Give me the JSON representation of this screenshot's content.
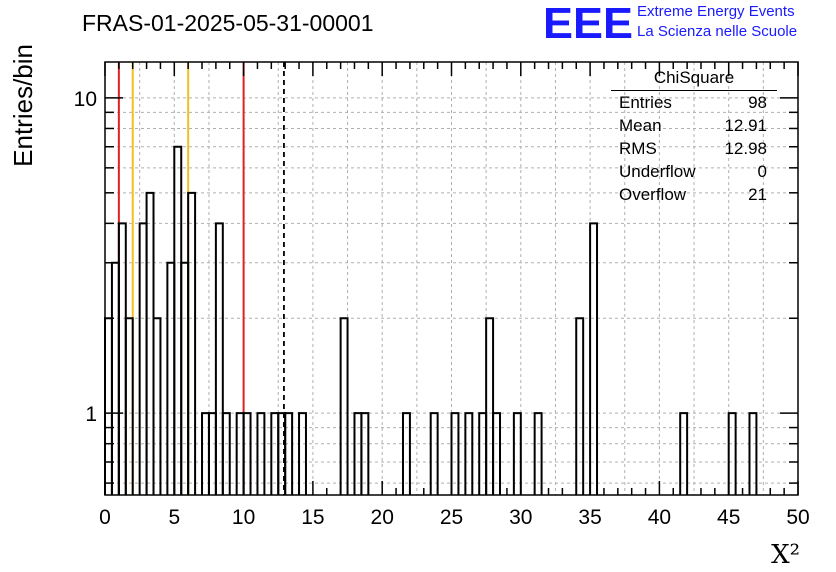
{
  "title": "FRAS-01-2025-05-31-00001",
  "logo": {
    "mark": "EEE",
    "line1": "Extreme Energy Events",
    "line2": "La Scienza nelle Scuole",
    "color": "#1a1aff"
  },
  "stats": {
    "name": "ChiSquare",
    "rows": [
      {
        "label": "Entries",
        "value": "98"
      },
      {
        "label": "Mean",
        "value": "12.91"
      },
      {
        "label": "RMS",
        "value": "12.98"
      },
      {
        "label": "Underflow",
        "value": "0"
      },
      {
        "label": "Overflow",
        "value": "21"
      }
    ]
  },
  "chart_data": {
    "type": "histogram",
    "xlabel": "X²",
    "ylabel": "Entries/bin",
    "xlim": [
      0,
      50
    ],
    "ylim": [
      0.55,
      13
    ],
    "ylog": true,
    "grid": true,
    "bin_width": 0.5,
    "bins": [
      {
        "x0": 0.0,
        "v": 2
      },
      {
        "x0": 0.5,
        "v": 3
      },
      {
        "x0": 1.0,
        "v": 4
      },
      {
        "x0": 1.5,
        "v": 2
      },
      {
        "x0": 2.0,
        "v": 0
      },
      {
        "x0": 2.5,
        "v": 4
      },
      {
        "x0": 3.0,
        "v": 5
      },
      {
        "x0": 3.5,
        "v": 2
      },
      {
        "x0": 4.0,
        "v": 0
      },
      {
        "x0": 4.5,
        "v": 3
      },
      {
        "x0": 5.0,
        "v": 7
      },
      {
        "x0": 5.5,
        "v": 3
      },
      {
        "x0": 6.0,
        "v": 5
      },
      {
        "x0": 6.5,
        "v": 0
      },
      {
        "x0": 7.0,
        "v": 1
      },
      {
        "x0": 7.5,
        "v": 1
      },
      {
        "x0": 8.0,
        "v": 4
      },
      {
        "x0": 8.5,
        "v": 1
      },
      {
        "x0": 9.0,
        "v": 0
      },
      {
        "x0": 9.5,
        "v": 1
      },
      {
        "x0": 10.0,
        "v": 1
      },
      {
        "x0": 10.5,
        "v": 0
      },
      {
        "x0": 11.0,
        "v": 1
      },
      {
        "x0": 11.5,
        "v": 0
      },
      {
        "x0": 12.0,
        "v": 1
      },
      {
        "x0": 12.5,
        "v": 1
      },
      {
        "x0": 13.0,
        "v": 1
      },
      {
        "x0": 13.5,
        "v": 0
      },
      {
        "x0": 14.0,
        "v": 1
      },
      {
        "x0": 14.5,
        "v": 0
      },
      {
        "x0": 15.0,
        "v": 0
      },
      {
        "x0": 15.5,
        "v": 0
      },
      {
        "x0": 16.0,
        "v": 0
      },
      {
        "x0": 16.5,
        "v": 0
      },
      {
        "x0": 17.0,
        "v": 2
      },
      {
        "x0": 17.5,
        "v": 0
      },
      {
        "x0": 18.0,
        "v": 1
      },
      {
        "x0": 18.5,
        "v": 1
      },
      {
        "x0": 19.0,
        "v": 0
      },
      {
        "x0": 19.5,
        "v": 0
      },
      {
        "x0": 20.0,
        "v": 0
      },
      {
        "x0": 20.5,
        "v": 0
      },
      {
        "x0": 21.0,
        "v": 0
      },
      {
        "x0": 21.5,
        "v": 1
      },
      {
        "x0": 22.0,
        "v": 0
      },
      {
        "x0": 22.5,
        "v": 0
      },
      {
        "x0": 23.0,
        "v": 0
      },
      {
        "x0": 23.5,
        "v": 1
      },
      {
        "x0": 24.0,
        "v": 0
      },
      {
        "x0": 24.5,
        "v": 0
      },
      {
        "x0": 25.0,
        "v": 1
      },
      {
        "x0": 25.5,
        "v": 0
      },
      {
        "x0": 26.0,
        "v": 1
      },
      {
        "x0": 26.5,
        "v": 0
      },
      {
        "x0": 27.0,
        "v": 1
      },
      {
        "x0": 27.5,
        "v": 2
      },
      {
        "x0": 28.0,
        "v": 1
      },
      {
        "x0": 28.5,
        "v": 0
      },
      {
        "x0": 29.0,
        "v": 0
      },
      {
        "x0": 29.5,
        "v": 1
      },
      {
        "x0": 30.0,
        "v": 0
      },
      {
        "x0": 30.5,
        "v": 0
      },
      {
        "x0": 31.0,
        "v": 1
      },
      {
        "x0": 31.5,
        "v": 0
      },
      {
        "x0": 32.0,
        "v": 0
      },
      {
        "x0": 32.5,
        "v": 0
      },
      {
        "x0": 33.0,
        "v": 0
      },
      {
        "x0": 33.5,
        "v": 0
      },
      {
        "x0": 34.0,
        "v": 2
      },
      {
        "x0": 34.5,
        "v": 0
      },
      {
        "x0": 35.0,
        "v": 4
      },
      {
        "x0": 35.5,
        "v": 0
      },
      {
        "x0": 36.0,
        "v": 0
      },
      {
        "x0": 36.5,
        "v": 0
      },
      {
        "x0": 37.0,
        "v": 0
      },
      {
        "x0": 37.5,
        "v": 0
      },
      {
        "x0": 38.0,
        "v": 0
      },
      {
        "x0": 38.5,
        "v": 0
      },
      {
        "x0": 39.0,
        "v": 0
      },
      {
        "x0": 39.5,
        "v": 0
      },
      {
        "x0": 40.0,
        "v": 0
      },
      {
        "x0": 40.5,
        "v": 0
      },
      {
        "x0": 41.0,
        "v": 0
      },
      {
        "x0": 41.5,
        "v": 1
      },
      {
        "x0": 42.0,
        "v": 0
      },
      {
        "x0": 42.5,
        "v": 0
      },
      {
        "x0": 43.0,
        "v": 0
      },
      {
        "x0": 43.5,
        "v": 0
      },
      {
        "x0": 44.0,
        "v": 0
      },
      {
        "x0": 44.5,
        "v": 0
      },
      {
        "x0": 45.0,
        "v": 1
      },
      {
        "x0": 45.5,
        "v": 0
      },
      {
        "x0": 46.0,
        "v": 0
      },
      {
        "x0": 46.5,
        "v": 1
      },
      {
        "x0": 47.0,
        "v": 0
      },
      {
        "x0": 47.5,
        "v": 0
      },
      {
        "x0": 48.0,
        "v": 0
      },
      {
        "x0": 48.5,
        "v": 0
      },
      {
        "x0": 49.0,
        "v": 0
      },
      {
        "x0": 49.5,
        "v": 0
      }
    ],
    "reference_lines": [
      {
        "x": 1,
        "color": "#dd2222",
        "style": "solid"
      },
      {
        "x": 2,
        "color": "#f2c01e",
        "style": "solid"
      },
      {
        "x": 6,
        "color": "#f2c01e",
        "style": "solid"
      },
      {
        "x": 10,
        "color": "#dd2222",
        "style": "solid"
      },
      {
        "x": 12.91,
        "color": "#000000",
        "style": "dashed"
      }
    ],
    "x_ticks": [
      "0",
      "5",
      "10",
      "15",
      "20",
      "25",
      "30",
      "35",
      "40",
      "45",
      "50"
    ],
    "y_ticks": [
      {
        "value": 1,
        "label": "1"
      },
      {
        "value": 10,
        "label": "10"
      }
    ]
  }
}
